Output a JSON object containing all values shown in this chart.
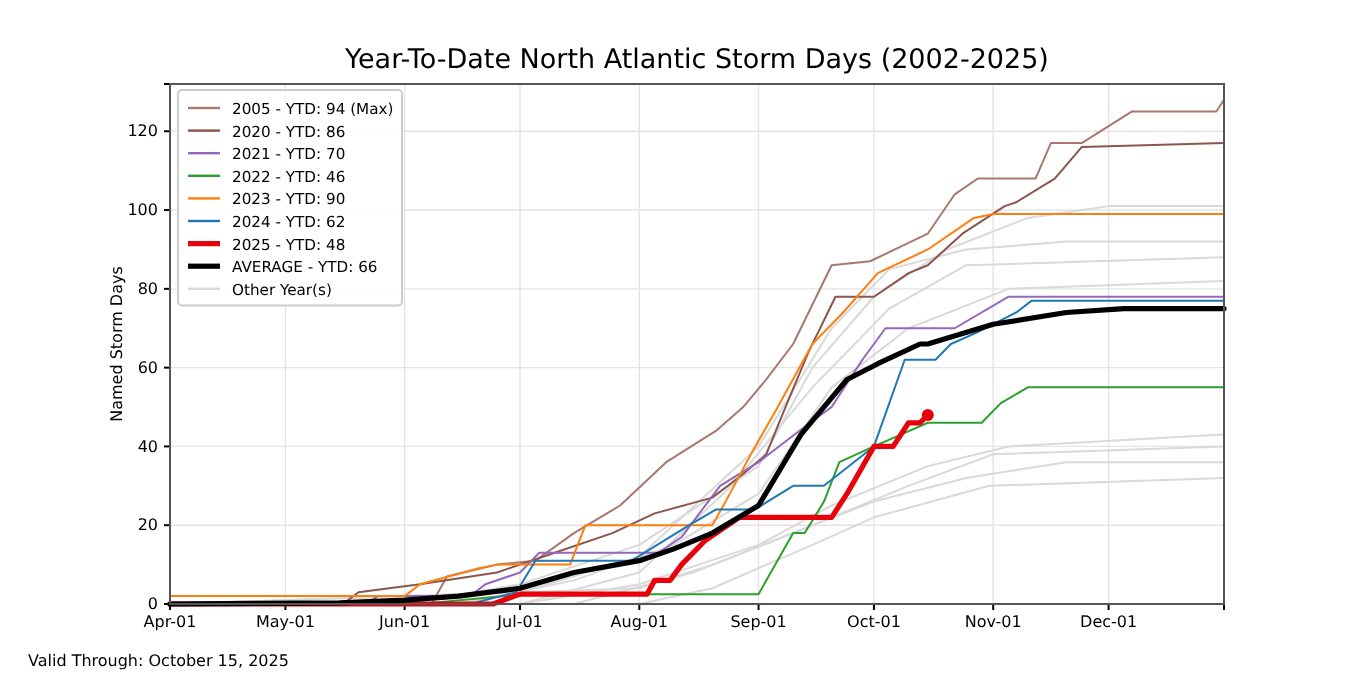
{
  "chart_data": {
    "type": "line",
    "title": "Year-To-Date North Atlantic Storm Days (2002-2025)",
    "ylabel": "Named Storm Days",
    "annotations": [
      "Valid Through: October 15, 2025"
    ],
    "xlim": [
      "--04-01",
      "--12-31"
    ],
    "xticks": [
      {
        "value": "--04-01",
        "label": "Apr-01"
      },
      {
        "value": "--05-01",
        "label": "May-01"
      },
      {
        "value": "--06-01",
        "label": "Jun-01"
      },
      {
        "value": "--07-01",
        "label": "Jul-01"
      },
      {
        "value": "--08-01",
        "label": "Aug-01"
      },
      {
        "value": "--09-01",
        "label": "Sep-01"
      },
      {
        "value": "--10-01",
        "label": "Oct-01"
      },
      {
        "value": "--11-01",
        "label": "Nov-01"
      },
      {
        "value": "--12-01",
        "label": "Dec-01"
      }
    ],
    "ylim": [
      0,
      132
    ],
    "yticks": [
      0,
      20,
      40,
      60,
      80,
      100,
      120
    ],
    "grid": true,
    "legend": "top left",
    "series": [
      {
        "name": "2005 - YTD: 94 (Max)",
        "color": "#a8786e",
        "x": [
          "--04-01",
          "--06-08",
          "--06-12",
          "--06-25",
          "--07-05",
          "--07-15",
          "--07-27",
          "--08-08",
          "--08-21",
          "--08-28",
          "--09-03",
          "--09-10",
          "--09-20",
          "--09-30",
          "--10-15",
          "--10-22",
          "--10-28",
          "--11-12",
          "--11-16",
          "--11-24",
          "--12-07",
          "--12-29",
          "--12-31"
        ],
        "values": [
          0,
          0,
          7,
          10,
          11,
          18,
          25,
          36,
          44,
          50,
          57,
          66,
          86,
          87,
          94,
          104,
          108,
          108,
          117,
          117,
          125,
          125,
          128
        ]
      },
      {
        "name": "2020 - YTD: 86",
        "color": "#8c564b",
        "x": [
          "--04-01",
          "--05-16",
          "--05-20",
          "--06-05",
          "--06-25",
          "--07-10",
          "--07-25",
          "--08-05",
          "--08-20",
          "--08-28",
          "--09-03",
          "--09-08",
          "--09-14",
          "--09-21",
          "--10-01",
          "--10-10",
          "--10-15",
          "--10-24",
          "--11-04",
          "--11-07",
          "--11-17",
          "--11-24",
          "--12-31"
        ],
        "values": [
          0,
          0,
          3,
          5,
          8,
          13,
          18,
          23,
          27,
          33,
          38,
          50,
          64,
          78,
          78,
          84,
          86,
          94,
          101,
          102,
          108,
          116,
          117
        ]
      },
      {
        "name": "2021 - YTD: 70",
        "color": "#9467bd",
        "x": [
          "--04-01",
          "--05-22",
          "--05-25",
          "--06-18",
          "--06-22",
          "--07-01",
          "--07-06",
          "--08-06",
          "--08-12",
          "--08-22",
          "--09-01",
          "--09-13",
          "--09-20",
          "--09-28",
          "--10-01",
          "--10-04",
          "--10-22",
          "--11-05",
          "--12-31"
        ],
        "values": [
          0,
          0,
          2,
          2,
          5,
          8,
          13,
          13,
          17,
          30,
          36,
          45,
          50,
          62,
          66,
          70,
          70,
          78,
          78
        ]
      },
      {
        "name": "2022 - YTD: 46",
        "color": "#2ca02c",
        "x": [
          "--04-01",
          "--06-05",
          "--07-02",
          "--09-01",
          "--09-10",
          "--09-13",
          "--09-18",
          "--09-22",
          "--10-01",
          "--10-08",
          "--10-15",
          "--10-29",
          "--11-03",
          "--11-10",
          "--12-31"
        ],
        "values": [
          0,
          0,
          2.5,
          2.5,
          18,
          18,
          26,
          36,
          40,
          43,
          46,
          46,
          51,
          55,
          55
        ]
      },
      {
        "name": "2023 - YTD: 90",
        "color": "#ff7f0e",
        "x": [
          "--04-01",
          "--06-01",
          "--06-05",
          "--06-20",
          "--06-25",
          "--07-14",
          "--07-18",
          "--08-20",
          "--08-24",
          "--08-30",
          "--09-06",
          "--09-15",
          "--09-23",
          "--10-02",
          "--10-15",
          "--10-27",
          "--11-01",
          "--12-31"
        ],
        "values": [
          2,
          2,
          5,
          9,
          10,
          10,
          20,
          20,
          27,
          38,
          50,
          66,
          74,
          84,
          90,
          98,
          99,
          99
        ]
      },
      {
        "name": "2024 - YTD: 62",
        "color": "#1f77b4",
        "x": [
          "--04-01",
          "--06-18",
          "--06-30",
          "--07-05",
          "--07-30",
          "--08-14",
          "--08-21",
          "--08-31",
          "--09-10",
          "--09-18",
          "--10-01",
          "--10-09",
          "--10-17",
          "--10-21",
          "--10-28",
          "--11-07",
          "--11-11",
          "--12-31"
        ],
        "values": [
          0,
          0,
          3,
          11,
          11,
          20,
          24,
          24,
          30,
          30,
          40,
          62,
          62,
          66,
          69,
          74,
          77,
          77
        ]
      },
      {
        "name": "2025 - YTD: 48",
        "color": "#e8000b",
        "x": [
          "--04-01",
          "--06-24",
          "--07-01",
          "--08-03",
          "--08-05",
          "--08-09",
          "--08-12",
          "--08-18",
          "--08-27",
          "--09-20",
          "--09-24",
          "--10-01",
          "--10-06",
          "--10-10",
          "--10-13",
          "--10-15"
        ],
        "values": [
          0,
          0,
          2.5,
          2.5,
          6,
          6,
          10,
          16,
          22,
          22,
          28,
          40,
          40,
          46,
          46,
          48
        ]
      },
      {
        "name": "AVERAGE - YTD: 66",
        "color": "#000000",
        "x": [
          "--04-01",
          "--05-15",
          "--06-01",
          "--06-15",
          "--07-01",
          "--07-15",
          "--08-01",
          "--08-10",
          "--08-20",
          "--09-01",
          "--09-12",
          "--09-24",
          "--10-02",
          "--10-13",
          "--10-15",
          "--11-01",
          "--11-20",
          "--12-05",
          "--12-31"
        ],
        "values": [
          0,
          0.3,
          1,
          2,
          4,
          8,
          11,
          14,
          18,
          25,
          43,
          57,
          61,
          66,
          66,
          71,
          74,
          75,
          75
        ]
      },
      {
        "name": "Other Year(s)",
        "color": "#d9d9d9",
        "x": [
          "--04-01",
          "--07-01",
          "--08-01",
          "--09-01",
          "--09-20",
          "--10-05",
          "--10-25",
          "--11-20",
          "--12-31"
        ],
        "values": [
          0,
          3,
          12,
          40,
          70,
          85,
          90,
          92,
          92
        ]
      },
      {
        "color": "#d9d9d9",
        "x": [
          "--04-01",
          "--06-01",
          "--07-01",
          "--08-01",
          "--09-01",
          "--09-15",
          "--10-01",
          "--10-20",
          "--11-10",
          "--12-01",
          "--12-31"
        ],
        "values": [
          0,
          0,
          5,
          15,
          35,
          60,
          78,
          90,
          98,
          101,
          101
        ]
      },
      {
        "color": "#d9d9d9",
        "x": [
          "--04-01",
          "--06-15",
          "--07-15",
          "--08-10",
          "--09-01",
          "--09-20",
          "--10-10",
          "--11-05",
          "--12-31"
        ],
        "values": [
          0,
          0,
          6,
          15,
          28,
          55,
          70,
          80,
          82
        ]
      },
      {
        "color": "#d9d9d9",
        "x": [
          "--04-01",
          "--07-01",
          "--08-01",
          "--08-25",
          "--09-15",
          "--10-05",
          "--10-25",
          "--12-31"
        ],
        "values": [
          0,
          0,
          8,
          30,
          55,
          75,
          86,
          88
        ]
      },
      {
        "color": "#d9d9d9",
        "x": [
          "--04-01",
          "--07-01",
          "--08-01",
          "--09-01",
          "--09-20",
          "--10-15",
          "--11-05",
          "--12-31"
        ],
        "values": [
          0,
          0,
          5,
          15,
          25,
          35,
          40,
          43
        ]
      },
      {
        "color": "#d9d9d9",
        "x": [
          "--04-01",
          "--06-01",
          "--08-01",
          "--08-20",
          "--09-15",
          "--10-10",
          "--11-01",
          "--12-31"
        ],
        "values": [
          0,
          2,
          4,
          10,
          20,
          30,
          38,
          40
        ]
      },
      {
        "color": "#d9d9d9",
        "x": [
          "--04-01",
          "--07-15",
          "--08-15",
          "--09-10",
          "--10-01",
          "--10-25",
          "--11-20",
          "--12-31"
        ],
        "values": [
          0,
          0,
          8,
          18,
          26,
          32,
          36,
          36
        ]
      },
      {
        "color": "#d9d9d9",
        "x": [
          "--04-01",
          "--08-01",
          "--08-20",
          "--09-15",
          "--10-01",
          "--10-31",
          "--12-31"
        ],
        "values": [
          0,
          0,
          4,
          15,
          22,
          30,
          32
        ]
      },
      {
        "type": "scatter",
        "marker": "circle",
        "color": "#e8000b",
        "x": [
          "--10-15"
        ],
        "values": [
          48
        ]
      }
    ]
  }
}
